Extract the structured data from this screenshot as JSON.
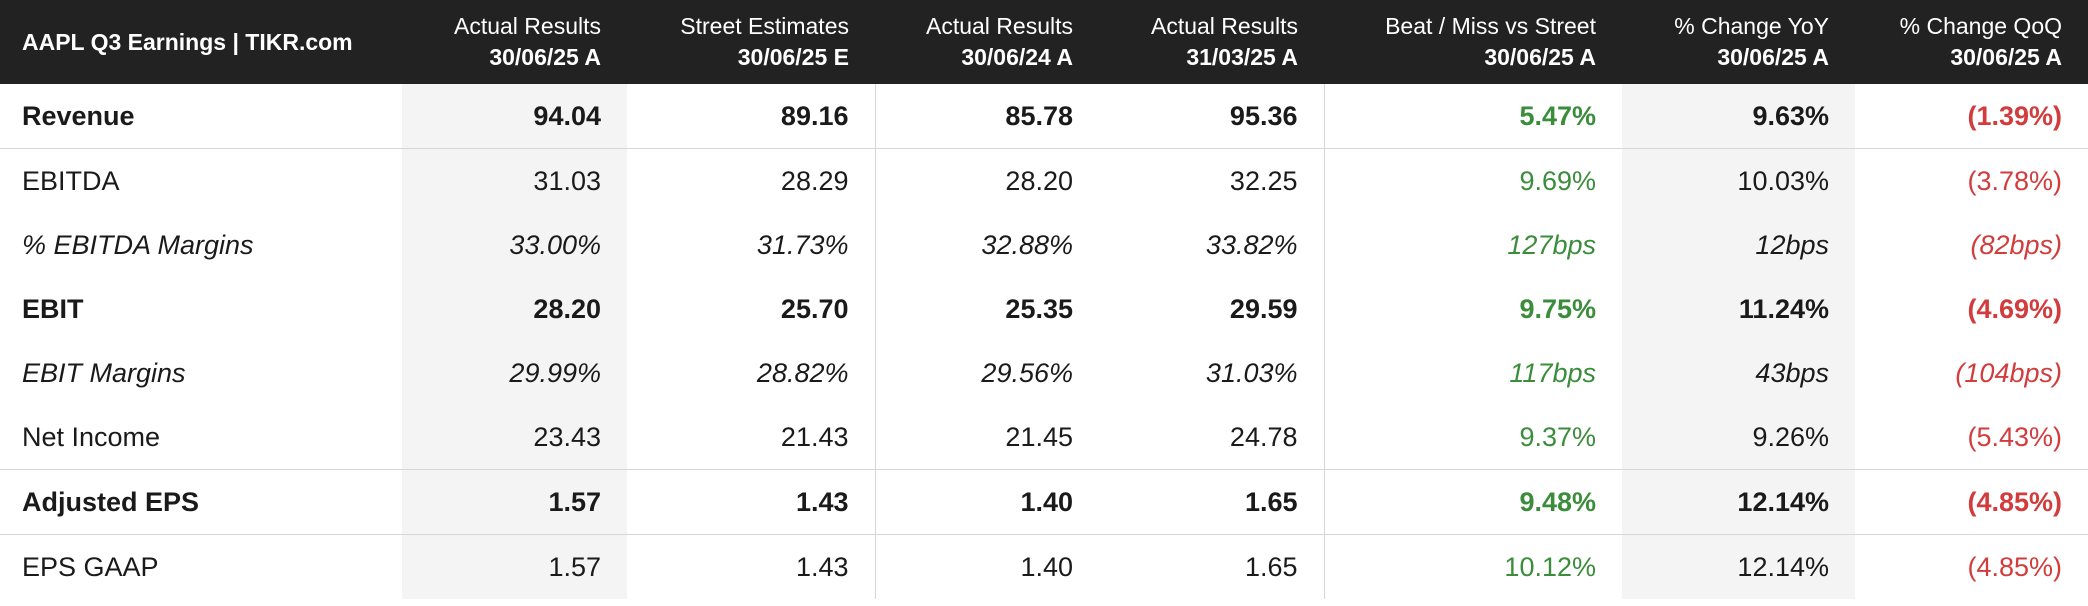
{
  "header": {
    "title": "AAPL Q3 Earnings | TIKR.com",
    "columns": [
      {
        "line1": "Actual Results",
        "line2": "30/06/25 A"
      },
      {
        "line1": "Street Estimates",
        "line2": "30/06/25 E"
      },
      {
        "line1": "Actual Results",
        "line2": "30/06/24 A"
      },
      {
        "line1": "Actual Results",
        "line2": "31/03/25 A"
      },
      {
        "line1": "Beat / Miss vs Street",
        "line2": "30/06/25 A"
      },
      {
        "line1": "% Change YoY",
        "line2": "30/06/25 A"
      },
      {
        "line1": "% Change QoQ",
        "line2": "30/06/25 A"
      }
    ]
  },
  "table": {
    "rows": [
      {
        "label": "Revenue",
        "style": "bold",
        "cells": [
          "94.04",
          "89.16",
          "85.78",
          "95.36",
          "5.47%",
          "9.63%",
          "(1.39%)"
        ]
      },
      {
        "label": "EBITDA",
        "style": "normal",
        "cells": [
          "31.03",
          "28.29",
          "28.20",
          "32.25",
          "9.69%",
          "10.03%",
          "(3.78%)"
        ]
      },
      {
        "label": "% EBITDA Margins",
        "style": "italic",
        "cells": [
          "33.00%",
          "31.73%",
          "32.88%",
          "33.82%",
          "127bps",
          "12bps",
          "(82bps)"
        ]
      },
      {
        "label": "EBIT",
        "style": "bold",
        "cells": [
          "28.20",
          "25.70",
          "25.35",
          "29.59",
          "9.75%",
          "11.24%",
          "(4.69%)"
        ]
      },
      {
        "label": "EBIT Margins",
        "style": "italic",
        "cells": [
          "29.99%",
          "28.82%",
          "29.56%",
          "31.03%",
          "117bps",
          "43bps",
          "(104bps)"
        ]
      },
      {
        "label": "Net Income",
        "style": "normal",
        "cells": [
          "23.43",
          "21.43",
          "21.45",
          "24.78",
          "9.37%",
          "9.26%",
          "(5.43%)"
        ]
      },
      {
        "label": "Adjusted EPS",
        "style": "bold",
        "cells": [
          "1.57",
          "1.43",
          "1.40",
          "1.65",
          "9.48%",
          "12.14%",
          "(4.85%)"
        ]
      },
      {
        "label": "EPS GAAP",
        "style": "normal",
        "cells": [
          "1.57",
          "1.43",
          "1.40",
          "1.65",
          "10.12%",
          "12.14%",
          "(4.85%)"
        ]
      }
    ]
  }
}
